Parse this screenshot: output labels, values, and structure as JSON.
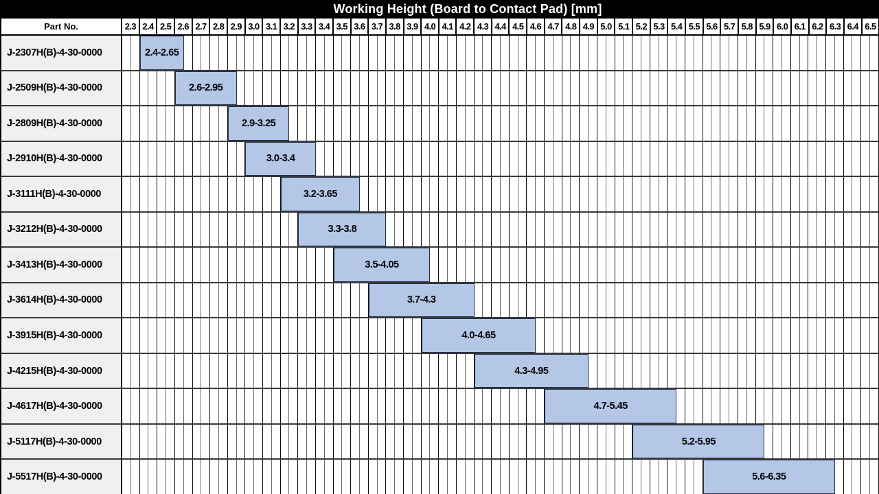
{
  "title": "Working Height (Board to Contact Pad) [mm]",
  "part_no_header": "Part No.",
  "colors": {
    "header_bg": "#000000",
    "header_text": "#ffffff",
    "bar_fill": "#b4c7e7",
    "bar_border": "#23314d",
    "row_label_bg": "#f0f0f0",
    "grid_minor": "#6a6a6a",
    "grid_major": "#101010"
  },
  "chart_data": {
    "type": "bar",
    "subtype": "horizontal-range-gantt",
    "title": "Working Height (Board to Contact Pad) [mm]",
    "legend": "none",
    "grid": "on",
    "x_axis": {
      "min": 2.3,
      "max": 6.6,
      "tick_step": 0.1,
      "minor_step": 0.05,
      "tick_labels": [
        "2.3",
        "2.4",
        "2.5",
        "2.6",
        "2.7",
        "2.8",
        "2.9",
        "3.0",
        "3.1",
        "3.2",
        "3.3",
        "3.4",
        "3.5",
        "3.6",
        "3.7",
        "3.8",
        "3.9",
        "4.0",
        "4.1",
        "4.2",
        "4.3",
        "4.4",
        "4.5",
        "4.6",
        "4.7",
        "4.8",
        "4.9",
        "5.0",
        "5.1",
        "5.2",
        "5.3",
        "5.4",
        "5.5",
        "5.6",
        "5.7",
        "5.8",
        "5.9",
        "6.0",
        "6.1",
        "6.2",
        "6.3",
        "6.4",
        "6.5"
      ]
    },
    "rows": [
      {
        "part_no": "J-2307H(B)-4-30-0000",
        "start": 2.4,
        "end": 2.65,
        "label": "2.4-2.65"
      },
      {
        "part_no": "J-2509H(B)-4-30-0000",
        "start": 2.6,
        "end": 2.95,
        "label": "2.6-2.95"
      },
      {
        "part_no": "J-2809H(B)-4-30-0000",
        "start": 2.9,
        "end": 3.25,
        "label": "2.9-3.25"
      },
      {
        "part_no": "J-2910H(B)-4-30-0000",
        "start": 3.0,
        "end": 3.4,
        "label": "3.0-3.4"
      },
      {
        "part_no": "J-3111H(B)-4-30-0000",
        "start": 3.2,
        "end": 3.65,
        "label": "3.2-3.65"
      },
      {
        "part_no": "J-3212H(B)-4-30-0000",
        "start": 3.3,
        "end": 3.8,
        "label": "3.3-3.8"
      },
      {
        "part_no": "J-3413H(B)-4-30-0000",
        "start": 3.5,
        "end": 4.05,
        "label": "3.5-4.05"
      },
      {
        "part_no": "J-3614H(B)-4-30-0000",
        "start": 3.7,
        "end": 4.3,
        "label": "3.7-4.3"
      },
      {
        "part_no": "J-3915H(B)-4-30-0000",
        "start": 4.0,
        "end": 4.65,
        "label": "4.0-4.65"
      },
      {
        "part_no": "J-4215H(B)-4-30-0000",
        "start": 4.3,
        "end": 4.95,
        "label": "4.3-4.95"
      },
      {
        "part_no": "J-4617H(B)-4-30-0000",
        "start": 4.7,
        "end": 5.45,
        "label": "4.7-5.45"
      },
      {
        "part_no": "J-5117H(B)-4-30-0000",
        "start": 5.2,
        "end": 5.95,
        "label": "5.2-5.95"
      },
      {
        "part_no": "J-5517H(B)-4-30-0000",
        "start": 5.6,
        "end": 6.35,
        "label": "5.6-6.35"
      }
    ]
  }
}
